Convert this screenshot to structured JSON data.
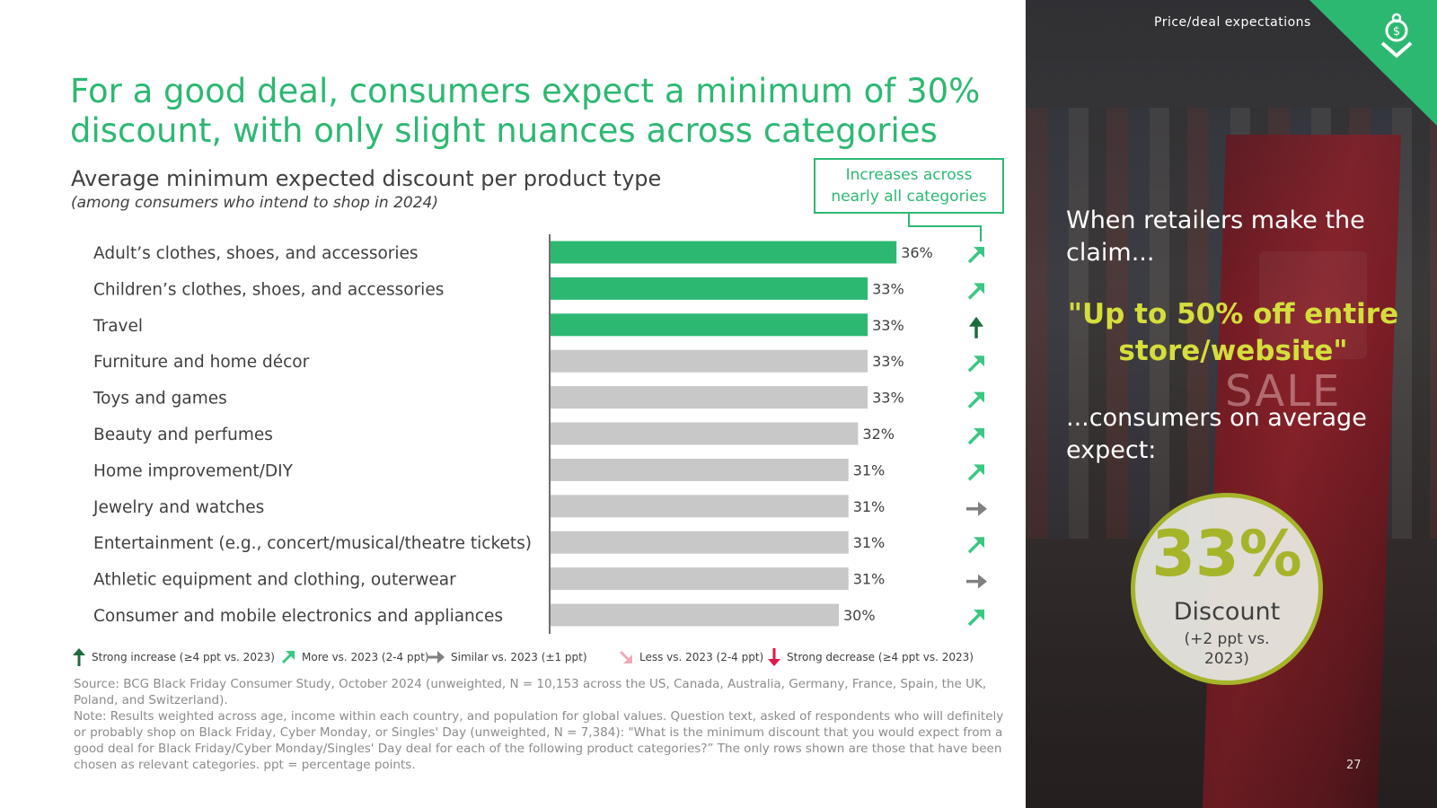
{
  "header": {
    "title": "For a good deal, consumers expect a minimum of 30% discount, with only slight nuances across categories",
    "subtitle": "Average minimum expected discount per product type",
    "subnote": "(among consumers who intend to shop in 2024)",
    "callout_line1": "Increases across",
    "callout_line2": "nearly all categories"
  },
  "colors": {
    "green": "#2db872",
    "gray_bar": "#c8c8c8",
    "dark_green": "#1e6b3c",
    "light_green": "#3cc783",
    "gray_arrow": "#808080",
    "pink": "#f2a9b7",
    "red": "#e0174a",
    "lime": "#a6b42a",
    "yellow": "#d4de3c"
  },
  "chart_data": {
    "type": "bar",
    "orientation": "horizontal",
    "title": "Average minimum expected discount per product type",
    "categories": [
      "Adult’s clothes, shoes, and accessories",
      "Children’s clothes, shoes, and accessories",
      "Travel",
      "Furniture and home décor",
      "Toys and games",
      "Beauty and perfumes",
      "Home improvement/DIY",
      "Jewelry and watches",
      "Entertainment (e.g., concert/musical/theatre tickets)",
      "Athletic equipment and clothing, outerwear",
      "Consumer and mobile electronics and appliances"
    ],
    "values": [
      36,
      33,
      33,
      33,
      33,
      32,
      31,
      31,
      31,
      31,
      30
    ],
    "value_labels": [
      "36%",
      "33%",
      "33%",
      "33%",
      "33%",
      "32%",
      "31%",
      "31%",
      "31%",
      "31%",
      "30%"
    ],
    "highlight": [
      true,
      true,
      true,
      false,
      false,
      false,
      false,
      false,
      false,
      false,
      false
    ],
    "trend": [
      "more",
      "more",
      "strong_increase",
      "more",
      "more",
      "more",
      "more",
      "similar",
      "more",
      "similar",
      "more"
    ],
    "xlim": [
      0,
      40
    ],
    "unit": "%"
  },
  "legend": {
    "strong_increase": "Strong increase (≥4 ppt vs. 2023)",
    "more": "More vs. 2023 (2-4 ppt)",
    "similar": "Similar vs. 2023 (±1 ppt)",
    "less": "Less vs. 2023 (2-4 ppt)",
    "strong_decrease": "Strong decrease (≥4 ppt vs. 2023)"
  },
  "source": {
    "line1": "Source: BCG Black Friday Consumer Study, October 2024 (unweighted, N = 10,153 across the US, Canada, Australia, Germany, France, Spain, the UK, Poland, and Switzerland).",
    "line2": "Note: Results weighted across age, income within each country, and population for global values. Question text, asked of respondents who will definitely or probably shop on Black Friday, Cyber Monday, or Singles' Day (unweighted, N = 7,384): \"What is the minimum discount that you would expect from a good deal for Black Friday/Cyber Monday/Singles' Day deal for each of the following product categories?” The only rows shown are those that have been chosen as relevant categories. ppt = percentage points."
  },
  "sidebar": {
    "section_tag": "Price/deal expectations",
    "sale_word": "SALE",
    "claim": "When retailers make the claim...",
    "quote": "\"Up to 50% off entire store/website\"",
    "expect": "...consumers on average expect:",
    "badge_value": "33%",
    "badge_label": "Discount",
    "badge_note": "(+2 ppt vs. 2023)",
    "page_number": "27"
  }
}
